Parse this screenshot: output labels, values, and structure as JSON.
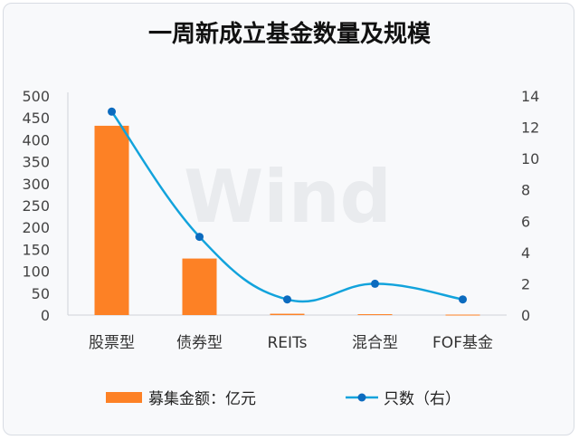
{
  "chart_data": {
    "type": "bar",
    "title": "一周新成立基金数量及规模",
    "categories": [
      "股票型",
      "债券型",
      "REITs",
      "混合型",
      "FOF基金"
    ],
    "series": [
      {
        "name": "募集金额：亿元",
        "type": "bar",
        "axis": "left",
        "color": "#fd8125",
        "values": [
          432,
          129,
          3,
          2,
          1
        ]
      },
      {
        "name": "只数（右）",
        "type": "line",
        "axis": "right",
        "color": "#12a3dc",
        "marker_color": "#0c6bbf",
        "smooth": true,
        "values": [
          13,
          5,
          1,
          2,
          1
        ]
      }
    ],
    "y_left": {
      "lim": [
        0,
        500
      ],
      "ticks": [
        0,
        50,
        100,
        150,
        200,
        250,
        300,
        350,
        400,
        450,
        500
      ]
    },
    "y_right": {
      "lim": [
        0,
        14
      ],
      "ticks": [
        0,
        2,
        4,
        6,
        8,
        10,
        12,
        14
      ]
    },
    "grid": false,
    "legend": "bottom",
    "watermark": "Wind"
  }
}
